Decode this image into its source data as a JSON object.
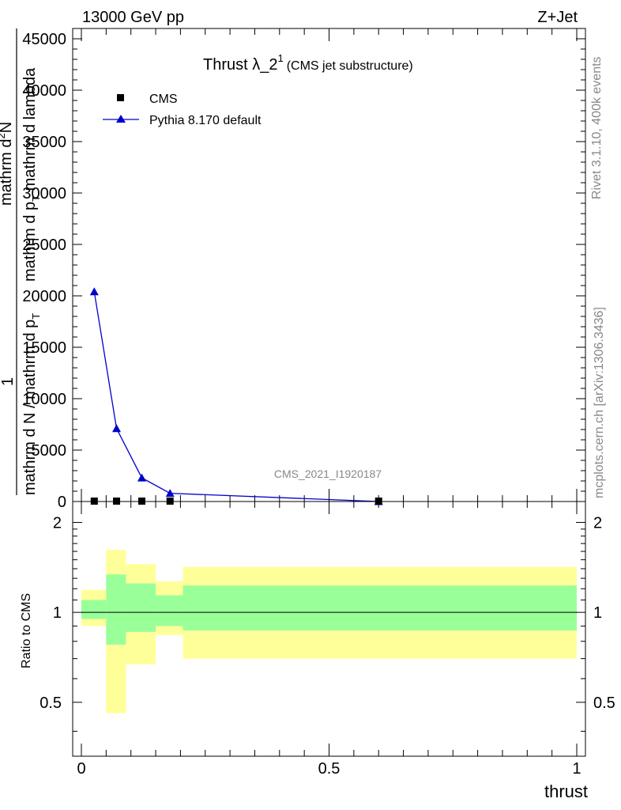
{
  "header": {
    "left": "13000 GeV pp",
    "right": "Z+Jet"
  },
  "side": {
    "rivet": "Rivet 3.1.10,  400k events",
    "mcplots": "mcplots.cern.ch [arXiv:1306.3436]"
  },
  "chart_data": [
    {
      "type": "line",
      "title_main": "Thrust λ_2",
      "title_sup": "1",
      "title_suffix": "(CMS jet substructure)",
      "watermark": "CMS_2021_I1920187",
      "xlabel": "thrust",
      "ylabel_line1": "mathrm d",
      "ylabel_line1_sup": "2",
      "ylabel_line1_tail": "N",
      "ylabel_line2": "mathrm d p",
      "ylabel_line2_sub": "T",
      "ylabel_line2_tail": " mathrm d lambda",
      "ylabel_prefix": "1",
      "ylabel_denom": "mathrm d N / mathrm d p",
      "ylabel_denom_sub": "T",
      "xlim": [
        0,
        1
      ],
      "ylim": [
        0,
        46000
      ],
      "y_ticks": [
        0,
        5000,
        10000,
        15000,
        20000,
        25000,
        30000,
        35000,
        40000,
        45000
      ],
      "y_tick_labels": [
        "0",
        "5000",
        "10000",
        "15000",
        "20000",
        "25000",
        "30000",
        "35000",
        "40000",
        "45000"
      ],
      "legend_position": "top-left",
      "series": [
        {
          "name": "CMS",
          "marker": "square",
          "color": "#000000",
          "x": [
            0.026,
            0.071,
            0.122,
            0.179,
            0.6
          ],
          "y": [
            0,
            0,
            0,
            0,
            0
          ]
        },
        {
          "name": "Pythia 8.170 default",
          "marker": "triangle",
          "color": "#0000cc",
          "x": [
            0.026,
            0.071,
            0.122,
            0.179,
            0.6
          ],
          "y": [
            20400,
            7100,
            2300,
            800,
            0
          ]
        }
      ]
    },
    {
      "type": "area",
      "ylabel": "Ratio to CMS",
      "xlabel": "thrust",
      "xlim": [
        0,
        1
      ],
      "ylim": [
        0.33,
        2.35
      ],
      "x_ticks": [
        0,
        0.5,
        1
      ],
      "x_tick_labels": [
        "0",
        "0.5",
        "1"
      ],
      "y_ticks": [
        0.5,
        1,
        2
      ],
      "y_tick_labels": [
        "0.5",
        "1",
        "2"
      ],
      "reference_line": 1,
      "band_colors": {
        "inner": "#99ff99",
        "outer": "#ffff99"
      },
      "bins": [
        {
          "x0": 0.0,
          "x1": 0.05,
          "inner": [
            0.95,
            1.1
          ],
          "outer": [
            0.9,
            1.19
          ]
        },
        {
          "x0": 0.05,
          "x1": 0.09,
          "inner": [
            0.78,
            1.34
          ],
          "outer": [
            0.46,
            1.62
          ]
        },
        {
          "x0": 0.09,
          "x1": 0.15,
          "inner": [
            0.86,
            1.25
          ],
          "outer": [
            0.67,
            1.45
          ]
        },
        {
          "x0": 0.15,
          "x1": 0.205,
          "inner": [
            0.9,
            1.14
          ],
          "outer": [
            0.84,
            1.27
          ]
        },
        {
          "x0": 0.205,
          "x1": 1.0,
          "inner": [
            0.87,
            1.23
          ],
          "outer": [
            0.7,
            1.42
          ]
        }
      ]
    }
  ]
}
